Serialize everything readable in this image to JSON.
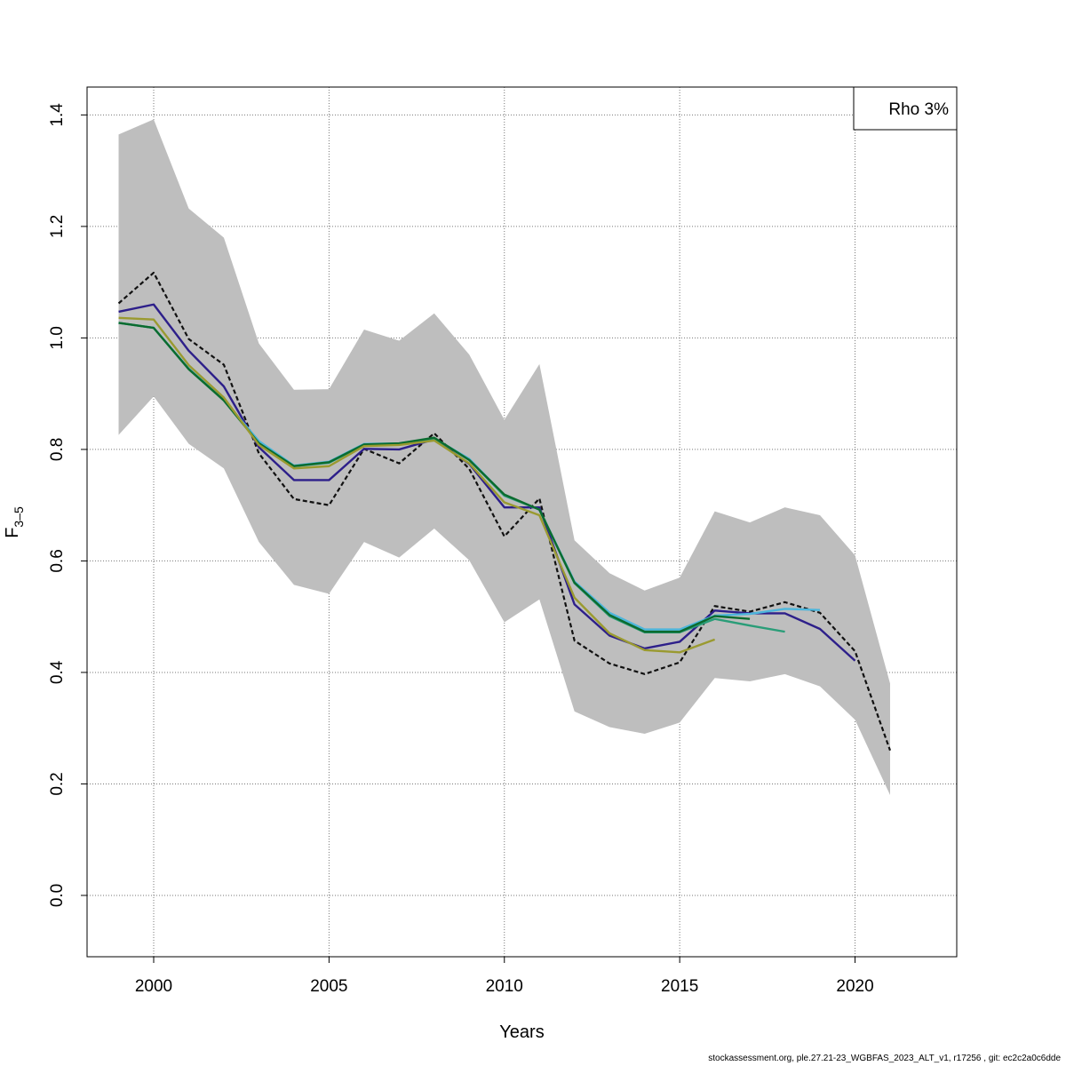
{
  "chart_data": {
    "type": "line",
    "xlabel": "Years",
    "ylabel_main": "F",
    "ylabel_sub": "3–5",
    "xlim": [
      1998.1,
      2022.9
    ],
    "ylim": [
      -0.11,
      1.45
    ],
    "x_ticks": [
      2000,
      2005,
      2010,
      2015,
      2020
    ],
    "y_ticks": [
      0.0,
      0.2,
      0.4,
      0.6,
      0.8,
      1.0,
      1.2,
      1.4
    ],
    "y_tick_labels": [
      "0.0",
      "0.2",
      "0.4",
      "0.6",
      "0.8",
      "1.0",
      "1.2",
      "1.4"
    ],
    "grid": true,
    "legend": {
      "placement": "top-right",
      "text": "Rho 3%"
    },
    "band": {
      "color": "#bebebe",
      "x": [
        1999,
        2000,
        2001,
        2002,
        2003,
        2004,
        2005,
        2006,
        2007,
        2008,
        2009,
        2010,
        2011,
        2012,
        2013,
        2014,
        2015,
        2016,
        2017,
        2018,
        2019,
        2020,
        2021
      ],
      "upper": [
        1.365,
        1.392,
        1.232,
        1.18,
        0.99,
        0.907,
        0.908,
        1.015,
        0.995,
        1.044,
        0.97,
        0.853,
        0.953,
        0.637,
        0.578,
        0.547,
        0.57,
        0.689,
        0.669,
        0.696,
        0.682,
        0.61,
        0.38
      ],
      "lower": [
        0.826,
        0.895,
        0.81,
        0.766,
        0.634,
        0.557,
        0.541,
        0.634,
        0.606,
        0.658,
        0.601,
        0.49,
        0.531,
        0.33,
        0.302,
        0.29,
        0.31,
        0.39,
        0.384,
        0.397,
        0.375,
        0.315,
        0.18
      ]
    },
    "series": [
      {
        "color": "#111111",
        "dashed": true,
        "x": [
          1999,
          2000,
          2001,
          2002,
          2003,
          2004,
          2005,
          2006,
          2007,
          2008,
          2009,
          2010,
          2011,
          2012,
          2013,
          2014,
          2015,
          2016,
          2017,
          2018,
          2019,
          2020,
          2021
        ],
        "values": [
          1.062,
          1.117,
          0.998,
          0.952,
          0.793,
          0.711,
          0.7,
          0.801,
          0.775,
          0.829,
          0.765,
          0.644,
          0.712,
          0.457,
          0.416,
          0.397,
          0.418,
          0.519,
          0.509,
          0.526,
          0.507,
          0.438,
          0.26
        ]
      },
      {
        "color": "#2d1f8a",
        "dashed": false,
        "x": [
          1999,
          2000,
          2001,
          2002,
          2003,
          2004,
          2005,
          2006,
          2007,
          2008,
          2009,
          2010,
          2011,
          2012,
          2013,
          2014,
          2015,
          2016,
          2017,
          2018,
          2019,
          2020
        ],
        "values": [
          1.047,
          1.06,
          0.977,
          0.913,
          0.804,
          0.745,
          0.745,
          0.801,
          0.8,
          0.818,
          0.774,
          0.696,
          0.696,
          0.522,
          0.466,
          0.443,
          0.455,
          0.511,
          0.506,
          0.506,
          0.478,
          0.421
        ]
      },
      {
        "color": "#4db6dc",
        "dashed": false,
        "x": [
          1999,
          2000,
          2001,
          2002,
          2003,
          2004,
          2005,
          2006,
          2007,
          2008,
          2009,
          2010,
          2011,
          2012,
          2013,
          2014,
          2015,
          2016,
          2017,
          2018,
          2019
        ],
        "values": [
          1.027,
          1.018,
          0.945,
          0.889,
          0.815,
          0.771,
          0.778,
          0.81,
          0.811,
          0.82,
          0.783,
          0.718,
          0.692,
          0.563,
          0.507,
          0.477,
          0.477,
          0.502,
          0.505,
          0.514,
          0.512
        ]
      },
      {
        "color": "#2a9d78",
        "dashed": false,
        "x": [
          1999,
          2000,
          2001,
          2002,
          2003,
          2004,
          2005,
          2006,
          2007,
          2008,
          2009,
          2010,
          2011,
          2012,
          2013,
          2014,
          2015,
          2016,
          2017,
          2018
        ],
        "values": [
          1.027,
          1.018,
          0.944,
          0.888,
          0.811,
          0.77,
          0.776,
          0.808,
          0.81,
          0.82,
          0.781,
          0.717,
          0.692,
          0.56,
          0.501,
          0.472,
          0.472,
          0.496,
          0.484,
          0.473
        ]
      },
      {
        "color": "#0b6b2e",
        "dashed": false,
        "x": [
          1999,
          2000,
          2001,
          2002,
          2003,
          2004,
          2005,
          2006,
          2007,
          2008,
          2009,
          2010,
          2011,
          2012,
          2013,
          2014,
          2015,
          2016,
          2017
        ],
        "values": [
          1.027,
          1.018,
          0.944,
          0.888,
          0.811,
          0.77,
          0.777,
          0.809,
          0.811,
          0.821,
          0.781,
          0.719,
          0.692,
          0.561,
          0.503,
          0.473,
          0.473,
          0.501,
          0.496
        ]
      },
      {
        "color": "#9a9a30",
        "dashed": false,
        "x": [
          1999,
          2000,
          2001,
          2002,
          2003,
          2004,
          2005,
          2006,
          2007,
          2008,
          2009,
          2010,
          2011,
          2012,
          2013,
          2014,
          2015,
          2016
        ],
        "values": [
          1.036,
          1.033,
          0.951,
          0.893,
          0.808,
          0.766,
          0.77,
          0.806,
          0.808,
          0.816,
          0.775,
          0.705,
          0.682,
          0.534,
          0.47,
          0.44,
          0.436,
          0.459
        ]
      }
    ]
  },
  "footer": "stockassessment.org, ple.27.21-23_WGBFAS_2023_ALT_v1, r17256 , git: ec2c2a0c6dde"
}
